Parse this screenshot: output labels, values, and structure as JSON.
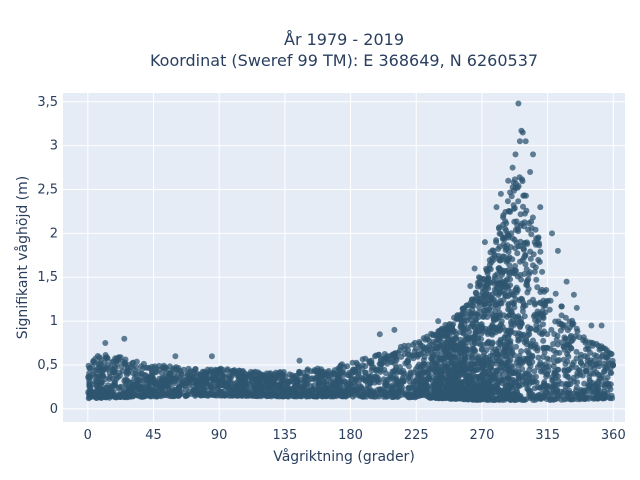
{
  "chart_data": {
    "type": "scatter",
    "title_line1": "År 1979 - 2019",
    "title_line2": "Koordinat (Sweref 99 TM): E 368649, N 6260537",
    "xlabel": "Vågriktning (grader)",
    "ylabel": "Signifikant våghöjd (m)",
    "xlim": [
      -17,
      368
    ],
    "ylim": [
      -0.15,
      3.6
    ],
    "xticks": [
      0,
      45,
      90,
      135,
      180,
      225,
      270,
      315,
      360
    ],
    "xtick_labels": [
      "0",
      "45",
      "90",
      "135",
      "180",
      "225",
      "270",
      "315",
      "360"
    ],
    "yticks": [
      0,
      0.5,
      1,
      1.5,
      2,
      2.5,
      3,
      3.5
    ],
    "ytick_labels": [
      "0",
      "0,5",
      "1",
      "1,5",
      "2",
      "2,5",
      "3",
      "3,5"
    ],
    "grid": true,
    "colors": {
      "marker": "#2f5670",
      "plot_background": "#e5ecf6",
      "grid": "#ffffff",
      "text": "#2a3f5f"
    },
    "series": [
      {
        "envelope_upper": [
          [
            0,
            0.58
          ],
          [
            10,
            0.62
          ],
          [
            20,
            0.6
          ],
          [
            30,
            0.56
          ],
          [
            45,
            0.5
          ],
          [
            60,
            0.48
          ],
          [
            75,
            0.46
          ],
          [
            90,
            0.46
          ],
          [
            105,
            0.44
          ],
          [
            120,
            0.42
          ],
          [
            135,
            0.42
          ],
          [
            150,
            0.45
          ],
          [
            165,
            0.48
          ],
          [
            180,
            0.54
          ],
          [
            195,
            0.6
          ],
          [
            210,
            0.68
          ],
          [
            225,
            0.78
          ],
          [
            240,
            0.9
          ],
          [
            255,
            1.1
          ],
          [
            265,
            1.35
          ],
          [
            275,
            1.75
          ],
          [
            283,
            2.15
          ],
          [
            290,
            2.55
          ],
          [
            295,
            2.7
          ],
          [
            300,
            2.55
          ],
          [
            305,
            2.2
          ],
          [
            312,
            1.75
          ],
          [
            320,
            1.35
          ],
          [
            330,
            1.05
          ],
          [
            340,
            0.85
          ],
          [
            350,
            0.75
          ],
          [
            360,
            0.65
          ]
        ],
        "envelope_lower": [
          [
            0,
            0.12
          ],
          [
            45,
            0.14
          ],
          [
            90,
            0.15
          ],
          [
            135,
            0.14
          ],
          [
            180,
            0.14
          ],
          [
            225,
            0.13
          ],
          [
            270,
            0.1
          ],
          [
            315,
            0.1
          ],
          [
            360,
            0.12
          ]
        ],
        "outliers": [
          [
            25,
            0.8
          ],
          [
            12,
            0.75
          ],
          [
            60,
            0.6
          ],
          [
            85,
            0.6
          ],
          [
            145,
            0.55
          ],
          [
            200,
            0.85
          ],
          [
            210,
            0.9
          ],
          [
            240,
            1.0
          ],
          [
            262,
            1.4
          ],
          [
            265,
            1.6
          ],
          [
            272,
            1.9
          ],
          [
            280,
            2.3
          ],
          [
            283,
            2.45
          ],
          [
            288,
            2.6
          ],
          [
            291,
            2.75
          ],
          [
            293,
            2.9
          ],
          [
            296,
            3.05
          ],
          [
            297,
            3.17
          ],
          [
            298,
            3.15
          ],
          [
            300,
            3.05
          ],
          [
            295,
            3.48
          ],
          [
            305,
            2.9
          ],
          [
            303,
            2.7
          ],
          [
            310,
            2.3
          ],
          [
            318,
            2.0
          ],
          [
            322,
            1.8
          ],
          [
            328,
            1.45
          ],
          [
            333,
            1.3
          ],
          [
            335,
            1.15
          ],
          [
            345,
            0.95
          ],
          [
            352,
            0.95
          ],
          [
            272,
            1.2
          ],
          [
            268,
            1.5
          ]
        ]
      }
    ]
  }
}
